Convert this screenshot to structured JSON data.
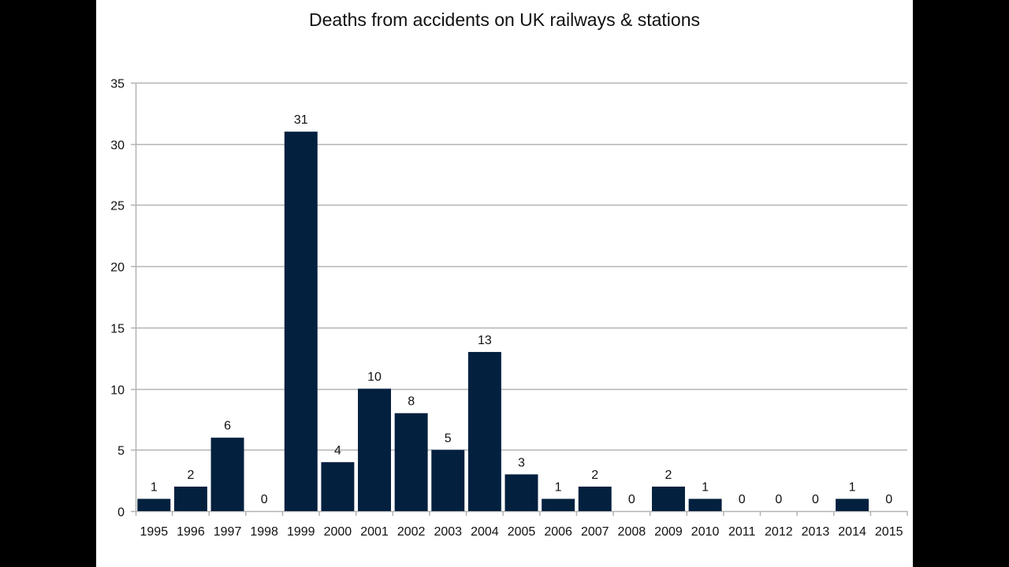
{
  "chart_data": {
    "type": "bar",
    "title": "Deaths from accidents on UK railways & stations",
    "xlabel": "",
    "ylabel": "",
    "categories": [
      "1995",
      "1996",
      "1997",
      "1998",
      "1999",
      "2000",
      "2001",
      "2002",
      "2003",
      "2004",
      "2005",
      "2006",
      "2007",
      "2008",
      "2009",
      "2010",
      "2011",
      "2012",
      "2013",
      "2014",
      "2015"
    ],
    "values": [
      1,
      2,
      6,
      0,
      31,
      4,
      10,
      8,
      5,
      13,
      3,
      1,
      2,
      0,
      2,
      1,
      0,
      0,
      0,
      1,
      0
    ],
    "ylim": [
      0,
      35
    ],
    "yticks": [
      0,
      5,
      10,
      15,
      20,
      25,
      30,
      35
    ],
    "grid": true,
    "legend": "none",
    "data_labels": true,
    "bar_color": "#03203f",
    "grid_color": "#b3b3b3"
  }
}
